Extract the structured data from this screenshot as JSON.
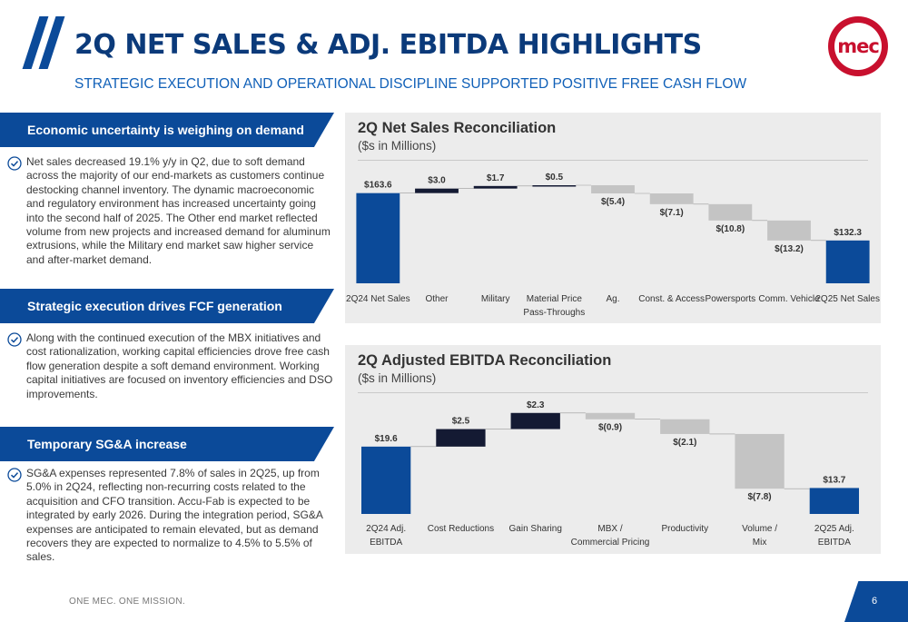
{
  "header": {
    "title": "2Q NET SALES & ADJ. EBITDA HIGHLIGHTS",
    "subtitle": "STRATEGIC EXECUTION AND OPERATIONAL DISCIPLINE SUPPORTED POSITIVE FREE CASH FLOW",
    "logo_text": "mec"
  },
  "sections": [
    {
      "heading": "Economic uncertainty is weighing on demand",
      "text": "Net sales decreased 19.1% y/y in Q2, due to soft demand across the majority of our end-markets as customers continue destocking channel inventory. The dynamic macroeconomic and regulatory environment has increased uncertainty going into the second half of 2025. The Other end market reflected volume from new projects and increased demand for aluminum extrusions, while the Military end market saw higher service and after-market demand."
    },
    {
      "heading": "Strategic execution drives FCF generation",
      "text": "Along with the continued execution of the MBX initiatives and cost rationalization, working capital efficiencies drove free cash flow generation despite a soft demand environment. Working capital initiatives are focused on inventory efficiencies and DSO improvements."
    },
    {
      "heading": "Temporary SG&A increase",
      "text": "SG&A expenses represented 7.8% of sales in 2Q25, up from 5.0% in 2Q24, reflecting non-recurring costs related to the acquisition and CFO transition. Accu-Fab is expected to be integrated by early 2026. During the integration period, SG&A expenses are anticipated to remain elevated, but as demand recovers they are expected to normalize to 4.5% to 5.5% of sales."
    }
  ],
  "colors": {
    "total": "#0b4a99",
    "increase": "#141a33",
    "decrease": "#c4c4c4",
    "label": "#333333"
  },
  "chart_data": [
    {
      "type": "bar",
      "subtype": "waterfall",
      "title": "2Q Net Sales Reconciliation",
      "subtitle": "($s in Millions)",
      "categories": [
        [
          "2Q24 Net Sales"
        ],
        [
          "Other"
        ],
        [
          "Military"
        ],
        [
          "Material Price",
          "Pass-Throughs"
        ],
        [
          "Ag."
        ],
        [
          "Const. & Access"
        ],
        [
          "Powersports"
        ],
        [
          "Comm. Vehicle"
        ],
        [
          "2Q25 Net Sales"
        ]
      ],
      "values": [
        163.6,
        3.0,
        1.7,
        0.5,
        -5.4,
        -7.1,
        -10.8,
        -13.2,
        132.3
      ],
      "kinds": [
        "total",
        "delta",
        "delta",
        "delta",
        "delta",
        "delta",
        "delta",
        "delta",
        "total"
      ],
      "value_labels": [
        "$163.6",
        "$3.0",
        "$1.7",
        "$0.5",
        "$(5.4)",
        "$(7.1)",
        "$(10.8)",
        "$(13.2)",
        "$132.3"
      ]
    },
    {
      "type": "bar",
      "subtype": "waterfall",
      "title": "2Q Adjusted EBITDA Reconciliation",
      "subtitle": "($s in Millions)",
      "categories": [
        [
          "2Q24 Adj.",
          "EBITDA"
        ],
        [
          "Cost Reductions"
        ],
        [
          "Gain Sharing"
        ],
        [
          "MBX /",
          "Commercial Pricing"
        ],
        [
          "Productivity"
        ],
        [
          "Volume /",
          "Mix"
        ],
        [
          "2Q25 Adj.",
          "EBITDA"
        ]
      ],
      "values": [
        19.6,
        2.5,
        2.3,
        -0.9,
        -2.1,
        -7.8,
        13.7
      ],
      "kinds": [
        "total",
        "delta",
        "delta",
        "delta",
        "delta",
        "delta",
        "total"
      ],
      "value_labels": [
        "$19.6",
        "$2.5",
        "$2.3",
        "$(0.9)",
        "$(2.1)",
        "$(7.8)",
        "$13.7"
      ]
    }
  ],
  "footer": {
    "tagline": "ONE MEC. ONE MISSION.",
    "page_number": "6"
  }
}
